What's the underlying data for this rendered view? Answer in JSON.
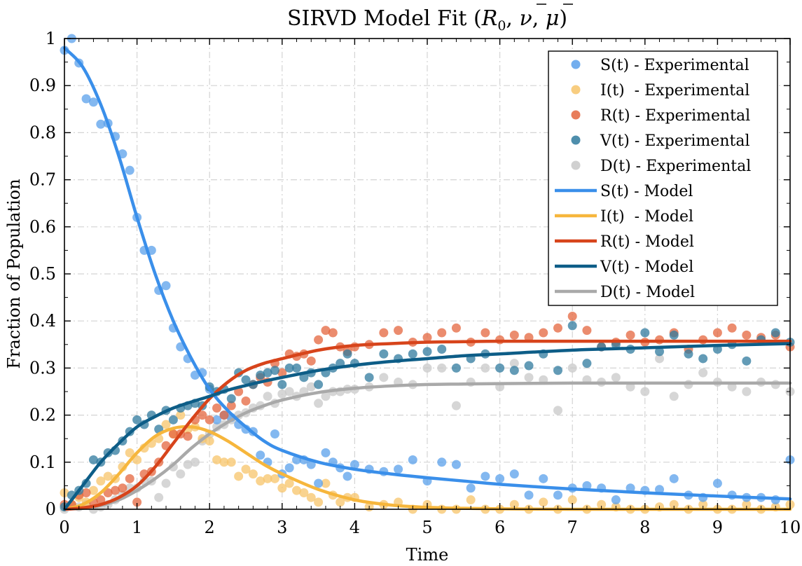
{
  "chart_data": {
    "type": "line",
    "title_main": "SIRVD Model Fit (",
    "title_r0": "R",
    "title_r0_sub": "0",
    "title_nu": "ν",
    "title_mu": "μ",
    "title_sep": ", ",
    "title_end": ")",
    "xlabel": "Time",
    "ylabel": "Fraction of Population",
    "xlim": [
      0,
      10
    ],
    "ylim": [
      0,
      1
    ],
    "x_ticks": [
      0,
      1,
      2,
      3,
      4,
      5,
      6,
      7,
      8,
      9,
      10
    ],
    "y_ticks": [
      0,
      0.1,
      0.2,
      0.3,
      0.4,
      0.5,
      0.6,
      0.7,
      0.8,
      0.9,
      1
    ],
    "y_tick_labels": [
      "0",
      "0.1",
      "0.2",
      "0.3",
      "0.4",
      "0.5",
      "0.6",
      "0.7",
      "0.8",
      "0.9",
      "1"
    ],
    "grid": true,
    "legend_position": "top-right",
    "legend": [
      {
        "label": "S(t) - Experimental",
        "kind": "marker",
        "color": "#5aa0eb"
      },
      {
        "label": "I(t)  - Experimental",
        "kind": "marker",
        "color": "#f7c46a"
      },
      {
        "label": "R(t) - Experimental",
        "kind": "marker",
        "color": "#e4663e"
      },
      {
        "label": "V(t) - Experimental",
        "kind": "marker",
        "color": "#2f7a9e"
      },
      {
        "label": "D(t) - Experimental",
        "kind": "marker",
        "color": "#c8c8c8"
      },
      {
        "label": "S(t) - Model",
        "kind": "line",
        "color": "#3a8fea"
      },
      {
        "label": "I(t)  - Model",
        "kind": "line",
        "color": "#f6b63c"
      },
      {
        "label": "R(t) - Model",
        "kind": "line",
        "color": "#d7441b"
      },
      {
        "label": "V(t) - Model",
        "kind": "line",
        "color": "#0d5d87"
      },
      {
        "label": "D(t) - Model",
        "kind": "line",
        "color": "#a9a9a9"
      }
    ],
    "model_x": [
      0,
      0.25,
      0.5,
      0.75,
      1,
      1.25,
      1.5,
      1.75,
      2,
      2.25,
      2.5,
      2.75,
      3,
      3.5,
      4,
      4.5,
      5,
      5.5,
      6,
      7,
      8,
      9,
      10
    ],
    "series": [
      {
        "name": "S(t) - Model",
        "values": [
          0.98,
          0.94,
          0.86,
          0.75,
          0.62,
          0.5,
          0.4,
          0.32,
          0.255,
          0.21,
          0.175,
          0.145,
          0.125,
          0.1,
          0.085,
          0.075,
          0.067,
          0.06,
          0.053,
          0.043,
          0.035,
          0.028,
          0.022
        ]
      },
      {
        "name": "I(t)  - Model",
        "values": [
          0.0,
          0.01,
          0.035,
          0.075,
          0.12,
          0.155,
          0.172,
          0.175,
          0.165,
          0.145,
          0.12,
          0.095,
          0.075,
          0.042,
          0.02,
          0.009,
          0.004,
          0.002,
          0.001,
          0.0,
          0.0,
          0.0,
          0.0
        ]
      },
      {
        "name": "R(t) - Model",
        "values": [
          0.0,
          0.003,
          0.01,
          0.025,
          0.05,
          0.09,
          0.14,
          0.19,
          0.235,
          0.27,
          0.295,
          0.31,
          0.32,
          0.338,
          0.348,
          0.352,
          0.355,
          0.356,
          0.357,
          0.357,
          0.357,
          0.357,
          0.357
        ]
      },
      {
        "name": "V(t) - Model",
        "values": [
          0.0,
          0.05,
          0.1,
          0.14,
          0.175,
          0.197,
          0.215,
          0.228,
          0.24,
          0.253,
          0.263,
          0.272,
          0.28,
          0.295,
          0.306,
          0.314,
          0.32,
          0.326,
          0.33,
          0.338,
          0.343,
          0.348,
          0.352
        ]
      },
      {
        "name": "D(t) - Model",
        "values": [
          0.0,
          0.002,
          0.008,
          0.02,
          0.04,
          0.065,
          0.095,
          0.13,
          0.16,
          0.185,
          0.205,
          0.22,
          0.232,
          0.248,
          0.257,
          0.262,
          0.265,
          0.266,
          0.267,
          0.268,
          0.268,
          0.268,
          0.268
        ]
      }
    ],
    "scatter_x": [
      0,
      0.1,
      0.2,
      0.3,
      0.4,
      0.5,
      0.6,
      0.7,
      0.8,
      0.9,
      1.0,
      1.1,
      1.2,
      1.3,
      1.4,
      1.5,
      1.6,
      1.7,
      1.8,
      1.9,
      2.0,
      2.1,
      2.2,
      2.3,
      2.4,
      2.5,
      2.6,
      2.7,
      2.8,
      2.9,
      3.0,
      3.1,
      3.2,
      3.3,
      3.4,
      3.5,
      3.6,
      3.7,
      3.8,
      3.9,
      4.0,
      4.2,
      4.4,
      4.6,
      4.8,
      5.0,
      5.2,
      5.4,
      5.6,
      5.8,
      6.0,
      6.2,
      6.4,
      6.6,
      6.8,
      7.0,
      7.2,
      7.4,
      7.6,
      7.8,
      8.0,
      8.2,
      8.4,
      8.6,
      8.8,
      9.0,
      9.2,
      9.4,
      9.6,
      9.8,
      10.0
    ],
    "scatter_series": [
      {
        "name": "S(t) - Experimental",
        "values": [
          0.975,
          1.0,
          0.948,
          0.872,
          0.865,
          0.818,
          0.82,
          0.792,
          0.755,
          0.72,
          0.62,
          0.55,
          0.55,
          0.465,
          0.475,
          0.385,
          0.345,
          0.32,
          0.285,
          0.29,
          0.255,
          0.19,
          0.2,
          0.195,
          0.18,
          0.17,
          0.165,
          0.115,
          0.1,
          0.16,
          0.075,
          0.088,
          0.105,
          0.105,
          0.095,
          0.055,
          0.12,
          0.1,
          0.088,
          0.07,
          0.095,
          0.085,
          0.08,
          0.085,
          0.105,
          0.06,
          0.1,
          0.095,
          0.045,
          0.07,
          0.065,
          0.075,
          0.03,
          0.065,
          0.03,
          0.045,
          0.05,
          0.045,
          0.02,
          0.045,
          0.04,
          0.042,
          0.065,
          0.03,
          0.025,
          0.055,
          0.03,
          0.025,
          0.025,
          0.02,
          0.105
        ]
      },
      {
        "name": "I(t)  - Experimental",
        "values": [
          0.035,
          0.01,
          0.025,
          0.015,
          0.04,
          0.06,
          0.07,
          0.065,
          0.09,
          0.12,
          0.105,
          0.13,
          0.14,
          0.15,
          0.18,
          0.16,
          0.2,
          0.17,
          0.175,
          0.15,
          0.145,
          0.105,
          0.1,
          0.1,
          0.07,
          0.085,
          0.075,
          0.06,
          0.065,
          0.065,
          0.045,
          0.055,
          0.04,
          0.035,
          0.025,
          0.015,
          0.055,
          0.03,
          0.015,
          0.025,
          0.025,
          0.005,
          0.01,
          0.015,
          0.0,
          0.01,
          0.0,
          0.0,
          0.02,
          0.0,
          0.0,
          0.01,
          0.0,
          0.015,
          0.0,
          0.02,
          0.0,
          0.01,
          0.005,
          0.0,
          0.0,
          0.005,
          0.01,
          0.0,
          0.01,
          0.0,
          0.0,
          0.01,
          0.0,
          0.005,
          0.01
        ]
      },
      {
        "name": "R(t) - Experimental",
        "values": [
          0.01,
          0.01,
          0.03,
          0.035,
          0.015,
          0.02,
          0.035,
          0.04,
          0.045,
          0.065,
          0.015,
          0.075,
          0.08,
          0.1,
          0.135,
          0.16,
          0.16,
          0.155,
          0.19,
          0.2,
          0.19,
          0.215,
          0.2,
          0.22,
          0.25,
          0.23,
          0.265,
          0.28,
          0.27,
          0.31,
          0.29,
          0.33,
          0.325,
          0.33,
          0.315,
          0.36,
          0.38,
          0.375,
          0.345,
          0.335,
          0.345,
          0.35,
          0.375,
          0.38,
          0.355,
          0.365,
          0.375,
          0.385,
          0.355,
          0.375,
          0.36,
          0.37,
          0.365,
          0.375,
          0.385,
          0.41,
          0.38,
          0.345,
          0.355,
          0.37,
          0.355,
          0.36,
          0.375,
          0.34,
          0.36,
          0.375,
          0.385,
          0.37,
          0.365,
          0.37,
          0.345
        ]
      },
      {
        "name": "V(t) - Experimental",
        "values": [
          0.005,
          0.03,
          0.04,
          0.055,
          0.105,
          0.1,
          0.12,
          0.125,
          0.145,
          0.165,
          0.19,
          0.18,
          0.2,
          0.17,
          0.21,
          0.19,
          0.215,
          0.22,
          0.225,
          0.22,
          0.26,
          0.25,
          0.255,
          0.235,
          0.29,
          0.275,
          0.265,
          0.285,
          0.29,
          0.295,
          0.265,
          0.3,
          0.3,
          0.28,
          0.29,
          0.265,
          0.29,
          0.3,
          0.31,
          0.33,
          0.31,
          0.28,
          0.33,
          0.32,
          0.33,
          0.335,
          0.34,
          0.3,
          0.32,
          0.33,
          0.3,
          0.295,
          0.305,
          0.33,
          0.295,
          0.39,
          0.31,
          0.345,
          0.35,
          0.34,
          0.375,
          0.335,
          0.37,
          0.33,
          0.32,
          0.34,
          0.35,
          0.315,
          0.36,
          0.375,
          0.355
        ]
      },
      {
        "name": "D(t) - Experimental",
        "values": [
          0.0,
          0.01,
          0.005,
          0.01,
          0.0,
          0.005,
          0.01,
          0.02,
          0.03,
          0.045,
          0.045,
          0.06,
          0.06,
          0.025,
          0.055,
          0.09,
          0.075,
          0.095,
          0.1,
          0.145,
          0.16,
          0.175,
          0.18,
          0.19,
          0.2,
          0.205,
          0.215,
          0.22,
          0.24,
          0.225,
          0.245,
          0.25,
          0.24,
          0.25,
          0.26,
          0.225,
          0.24,
          0.25,
          0.25,
          0.255,
          0.255,
          0.26,
          0.28,
          0.27,
          0.265,
          0.3,
          0.3,
          0.22,
          0.27,
          0.3,
          0.26,
          0.31,
          0.28,
          0.275,
          0.21,
          0.3,
          0.275,
          0.27,
          0.28,
          0.26,
          0.25,
          0.32,
          0.24,
          0.265,
          0.29,
          0.27,
          0.26,
          0.25,
          0.27,
          0.265,
          0.25
        ]
      }
    ]
  }
}
